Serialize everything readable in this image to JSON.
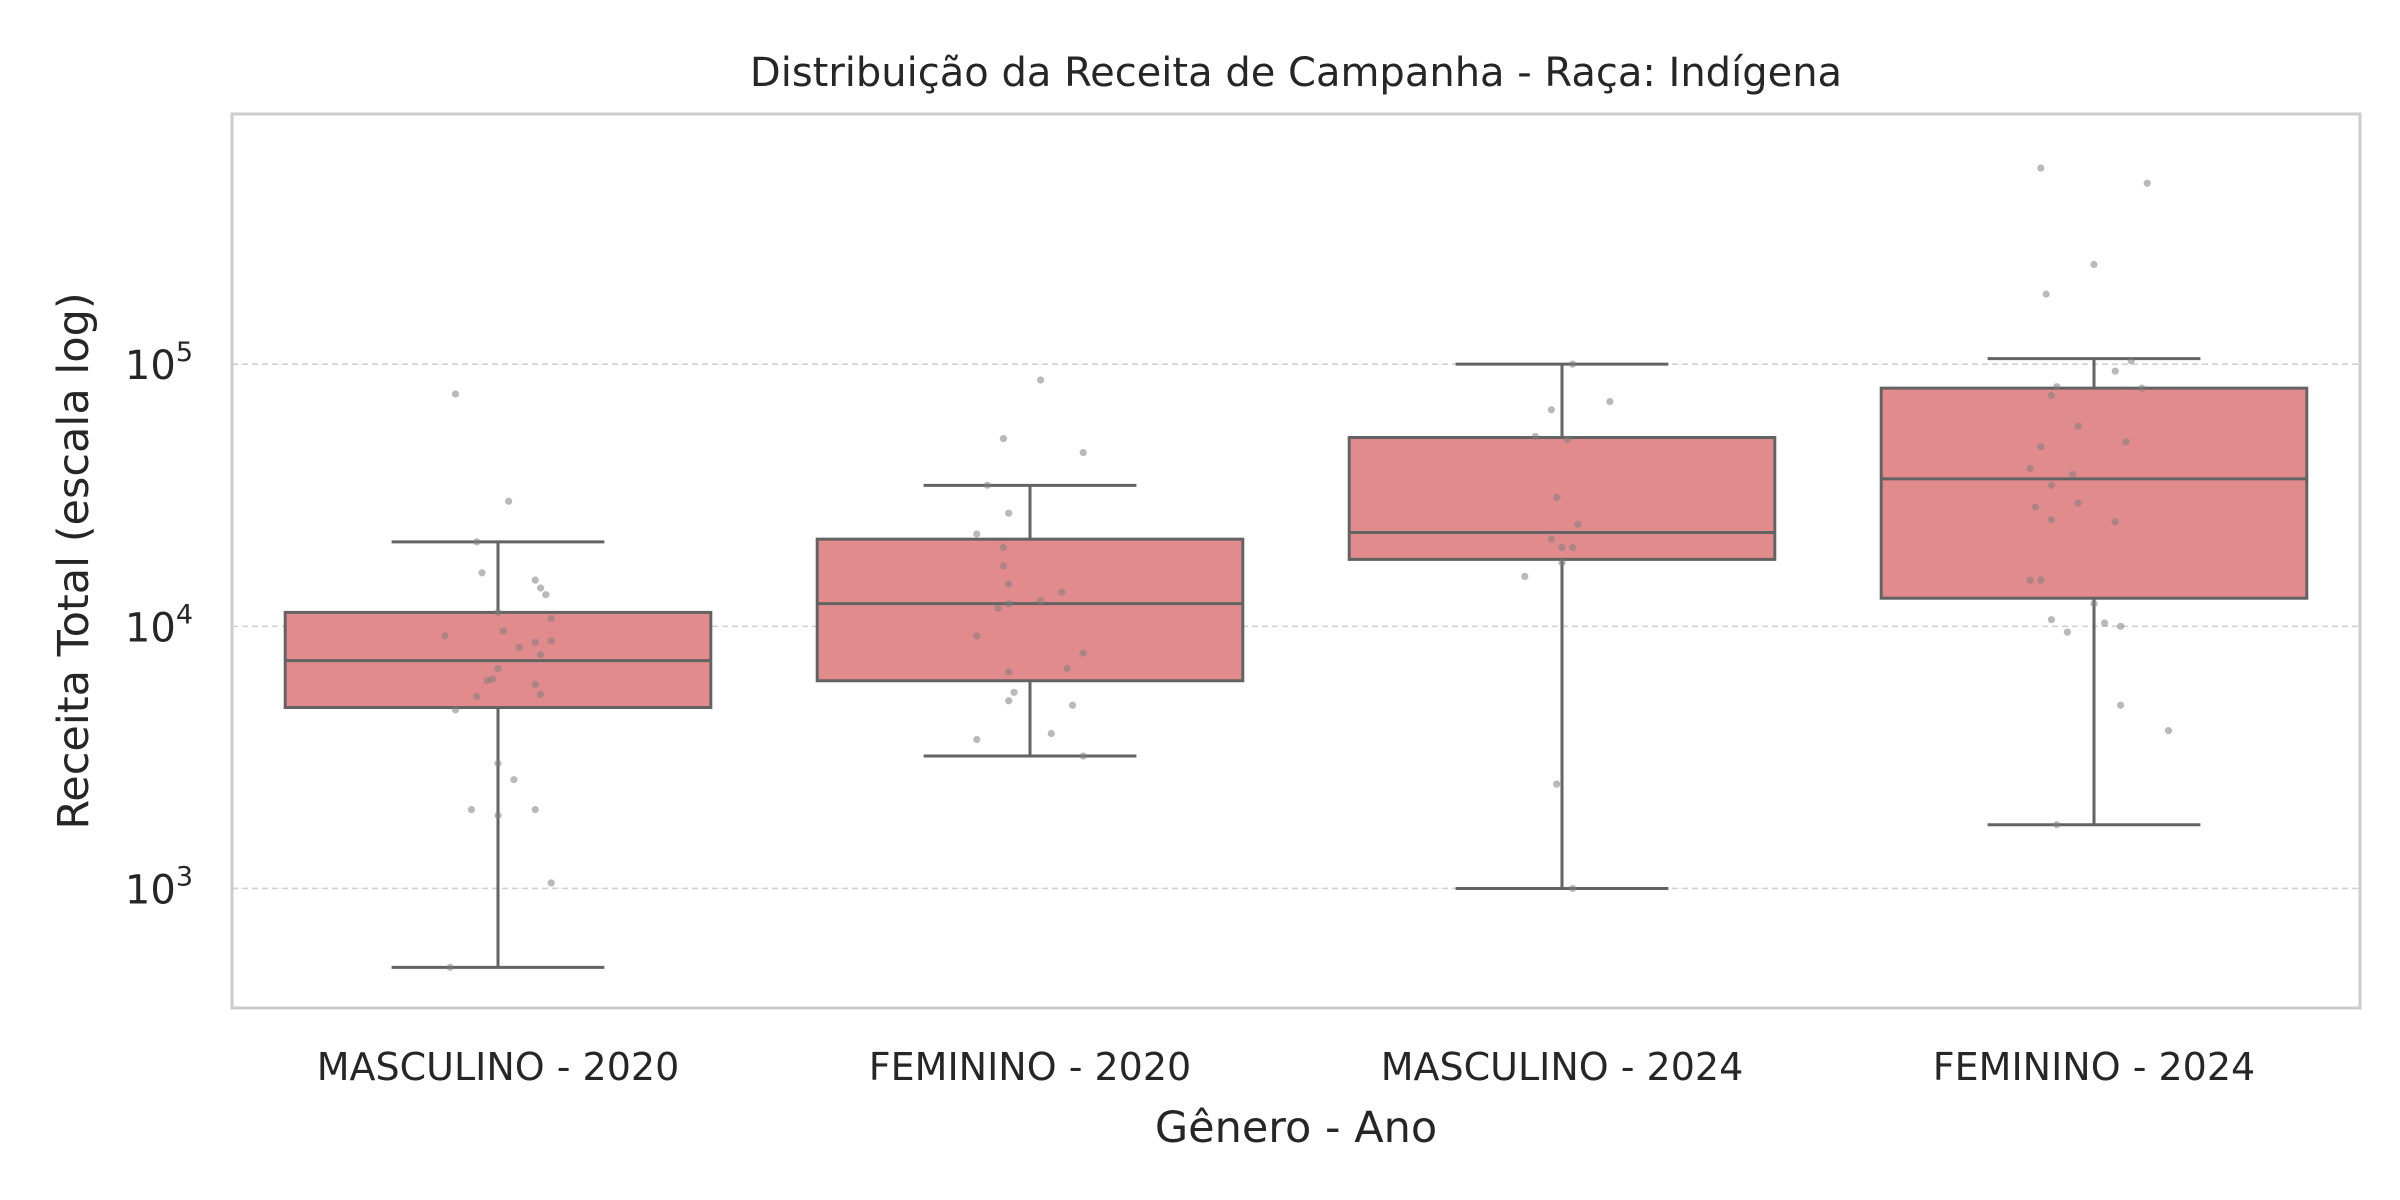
{
  "chart_data": {
    "type": "box",
    "title": "Distribuição da Receita de Campanha - Raça: Indígena",
    "xlabel": "Gênero - Ano",
    "ylabel": "Receita Total (escala log)",
    "yscale": "log",
    "ylim": [
      350,
      900000
    ],
    "yticks": [
      {
        "value": 1000,
        "base": "10",
        "exp": "3"
      },
      {
        "value": 10000,
        "base": "10",
        "exp": "4"
      },
      {
        "value": 100000,
        "base": "10",
        "exp": "5"
      }
    ],
    "grid": "horizontal dashed",
    "colors": {
      "box": "#e28b8d",
      "edge": "#636363",
      "point": "#7f7f7f",
      "grid": "#d0d0d0",
      "frame": "#cccccc"
    },
    "categories": [
      "MASCULINO - 2020",
      "FEMININO - 2020",
      "MASCULINO - 2024",
      "FEMININO - 2024"
    ],
    "boxes": [
      {
        "whislo": 500,
        "q1": 4900,
        "med": 7400,
        "q3": 11300,
        "whishi": 21000
      },
      {
        "whislo": 3200,
        "q1": 6200,
        "med": 12200,
        "q3": 21500,
        "whishi": 34500
      },
      {
        "whislo": 1000,
        "q1": 18000,
        "med": 22800,
        "q3": 52500,
        "whishi": 100000
      },
      {
        "whislo": 1750,
        "q1": 12800,
        "med": 36500,
        "q3": 81000,
        "whishi": 105000
      }
    ],
    "points": [
      [
        {
          "dx": -0.08,
          "y": 77000
        },
        {
          "dx": 0.02,
          "y": 30000
        },
        {
          "dx": -0.04,
          "y": 21000
        },
        {
          "dx": -0.03,
          "y": 16000
        },
        {
          "dx": 0.07,
          "y": 15000
        },
        {
          "dx": 0.08,
          "y": 14000
        },
        {
          "dx": 0.09,
          "y": 13200
        },
        {
          "dx": 0.0,
          "y": 11300
        },
        {
          "dx": 0.1,
          "y": 10700
        },
        {
          "dx": -0.1,
          "y": 9200
        },
        {
          "dx": 0.01,
          "y": 9600
        },
        {
          "dx": 0.1,
          "y": 8800
        },
        {
          "dx": 0.07,
          "y": 8700
        },
        {
          "dx": 0.04,
          "y": 8300
        },
        {
          "dx": 0.08,
          "y": 7800
        },
        {
          "dx": 0.0,
          "y": 6900
        },
        {
          "dx": -0.01,
          "y": 6300
        },
        {
          "dx": -0.02,
          "y": 6200
        },
        {
          "dx": 0.07,
          "y": 6000
        },
        {
          "dx": 0.08,
          "y": 5500
        },
        {
          "dx": -0.04,
          "y": 5400
        },
        {
          "dx": -0.08,
          "y": 4800
        },
        {
          "dx": 0.0,
          "y": 3000
        },
        {
          "dx": 0.03,
          "y": 2600
        },
        {
          "dx": -0.05,
          "y": 2000
        },
        {
          "dx": 0.07,
          "y": 2000
        },
        {
          "dx": 0.0,
          "y": 1900
        },
        {
          "dx": 0.1,
          "y": 1050
        },
        {
          "dx": -0.09,
          "y": 500
        }
      ],
      [
        {
          "dx": 0.02,
          "y": 87000
        },
        {
          "dx": -0.05,
          "y": 52000
        },
        {
          "dx": 0.1,
          "y": 46000
        },
        {
          "dx": -0.08,
          "y": 34500
        },
        {
          "dx": -0.04,
          "y": 27000
        },
        {
          "dx": -0.1,
          "y": 22500
        },
        {
          "dx": -0.05,
          "y": 20000
        },
        {
          "dx": -0.05,
          "y": 17000
        },
        {
          "dx": -0.04,
          "y": 14500
        },
        {
          "dx": 0.06,
          "y": 13500
        },
        {
          "dx": 0.02,
          "y": 12500
        },
        {
          "dx": -0.04,
          "y": 12200
        },
        {
          "dx": -0.06,
          "y": 11700
        },
        {
          "dx": -0.1,
          "y": 9200
        },
        {
          "dx": 0.1,
          "y": 7900
        },
        {
          "dx": -0.04,
          "y": 6700
        },
        {
          "dx": 0.07,
          "y": 6900
        },
        {
          "dx": -0.03,
          "y": 5600
        },
        {
          "dx": -0.04,
          "y": 5200
        },
        {
          "dx": 0.08,
          "y": 5000
        },
        {
          "dx": 0.04,
          "y": 3900
        },
        {
          "dx": -0.1,
          "y": 3700
        },
        {
          "dx": 0.1,
          "y": 3200
        }
      ],
      [
        {
          "dx": 0.02,
          "y": 100000
        },
        {
          "dx": 0.09,
          "y": 72000
        },
        {
          "dx": -0.02,
          "y": 67000
        },
        {
          "dx": -0.05,
          "y": 53000
        },
        {
          "dx": 0.01,
          "y": 51500
        },
        {
          "dx": -0.01,
          "y": 31000
        },
        {
          "dx": 0.03,
          "y": 24500
        },
        {
          "dx": -0.02,
          "y": 21500
        },
        {
          "dx": 0.0,
          "y": 20000
        },
        {
          "dx": 0.02,
          "y": 20000
        },
        {
          "dx": 0.0,
          "y": 17500
        },
        {
          "dx": -0.07,
          "y": 15500
        },
        {
          "dx": -0.01,
          "y": 2500
        },
        {
          "dx": 0.02,
          "y": 1000
        }
      ],
      [
        {
          "dx": -0.1,
          "y": 560000
        },
        {
          "dx": 0.1,
          "y": 490000
        },
        {
          "dx": 0.0,
          "y": 240000
        },
        {
          "dx": -0.09,
          "y": 185000
        },
        {
          "dx": 0.07,
          "y": 103000
        },
        {
          "dx": 0.04,
          "y": 94000
        },
        {
          "dx": -0.07,
          "y": 82000
        },
        {
          "dx": 0.09,
          "y": 81000
        },
        {
          "dx": -0.08,
          "y": 76000
        },
        {
          "dx": -0.03,
          "y": 58000
        },
        {
          "dx": 0.06,
          "y": 50500
        },
        {
          "dx": -0.1,
          "y": 48500
        },
        {
          "dx": -0.12,
          "y": 40000
        },
        {
          "dx": -0.04,
          "y": 38000
        },
        {
          "dx": -0.08,
          "y": 34500
        },
        {
          "dx": -0.03,
          "y": 29500
        },
        {
          "dx": -0.11,
          "y": 28500
        },
        {
          "dx": -0.08,
          "y": 25500
        },
        {
          "dx": 0.04,
          "y": 25000
        },
        {
          "dx": -0.12,
          "y": 15000
        },
        {
          "dx": -0.1,
          "y": 15000
        },
        {
          "dx": 0.0,
          "y": 12200
        },
        {
          "dx": -0.08,
          "y": 10600
        },
        {
          "dx": 0.02,
          "y": 10300
        },
        {
          "dx": 0.05,
          "y": 10000
        },
        {
          "dx": -0.05,
          "y": 9500
        },
        {
          "dx": 0.05,
          "y": 5000
        },
        {
          "dx": 0.14,
          "y": 4000
        },
        {
          "dx": -0.07,
          "y": 1750
        }
      ]
    ]
  }
}
